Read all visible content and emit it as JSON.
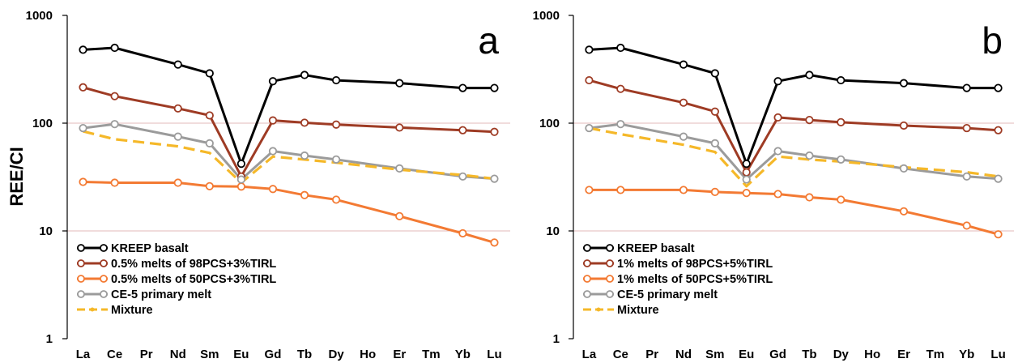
{
  "chart_data": [
    {
      "type": "line",
      "panel_label": "a",
      "ylabel": "REE/CI",
      "yscale": "log",
      "ylim": [
        1,
        1000
      ],
      "yticks": [
        "1",
        "10",
        "100",
        "1000"
      ],
      "grid": "horizontal gridlines at 10 and 100",
      "legend_position": "bottom-left",
      "categories": [
        "La",
        "Ce",
        "Pr",
        "Nd",
        "Sm",
        "Eu",
        "Gd",
        "Tb",
        "Dy",
        "Ho",
        "Er",
        "Tm",
        "Yb",
        "Lu"
      ],
      "series": [
        {
          "name": "KREEP basalt",
          "color": "#000000",
          "style": "solid",
          "markers": true,
          "values": [
            480,
            500,
            null,
            350,
            290,
            42,
            245,
            280,
            250,
            null,
            235,
            null,
            212,
            212
          ]
        },
        {
          "name": "0.5% melts of 98PCS+3%TIRL",
          "color": "#9e3b24",
          "style": "solid",
          "markers": true,
          "values": [
            215,
            178,
            null,
            137,
            118,
            32,
            106,
            101,
            97,
            null,
            91,
            null,
            86,
            83
          ]
        },
        {
          "name": "0.5% melts of 50PCS+3%TIRL",
          "color": "#f37a33",
          "style": "solid",
          "markers": true,
          "values": [
            28.5,
            28,
            null,
            28,
            26,
            25.8,
            24.5,
            21.5,
            19.5,
            null,
            13.7,
            null,
            9.5,
            7.8
          ]
        },
        {
          "name": "CE-5 primary melt",
          "color": "#9b9b9b",
          "style": "solid",
          "markers": true,
          "values": [
            90,
            98,
            null,
            75,
            65,
            30,
            55,
            50,
            46,
            null,
            38,
            null,
            32,
            30.5
          ]
        },
        {
          "name": "Mixture",
          "color": "#f5b829",
          "style": "dashed",
          "markers": false,
          "values": [
            84,
            71,
            null,
            61,
            53,
            28,
            49,
            46,
            43,
            null,
            37,
            null,
            33,
            30.5
          ]
        }
      ]
    },
    {
      "type": "line",
      "panel_label": "b",
      "ylabel": "",
      "yscale": "log",
      "ylim": [
        1,
        1000
      ],
      "yticks": [
        "1",
        "10",
        "100",
        "1000"
      ],
      "grid": "horizontal gridlines at 10 and 100",
      "legend_position": "bottom-left",
      "categories": [
        "La",
        "Ce",
        "Pr",
        "Nd",
        "Sm",
        "Eu",
        "Gd",
        "Tb",
        "Dy",
        "Ho",
        "Er",
        "Tm",
        "Yb",
        "Lu"
      ],
      "series": [
        {
          "name": "KREEP basalt",
          "color": "#000000",
          "style": "solid",
          "markers": true,
          "values": [
            480,
            500,
            null,
            350,
            290,
            42,
            245,
            280,
            250,
            null,
            235,
            null,
            212,
            212
          ]
        },
        {
          "name": "1% melts of 98PCS+5%TIRL",
          "color": "#9e3b24",
          "style": "solid",
          "markers": true,
          "values": [
            250,
            208,
            null,
            155,
            128,
            35,
            113,
            107,
            102,
            null,
            95,
            null,
            90,
            86
          ]
        },
        {
          "name": "1% melts of 50PCS+5%TIRL",
          "color": "#f37a33",
          "style": "solid",
          "markers": true,
          "values": [
            24,
            24,
            null,
            24,
            23,
            22.5,
            22,
            20.5,
            19.5,
            null,
            15.2,
            null,
            11.2,
            9.3
          ]
        },
        {
          "name": "CE-5 primary melt",
          "color": "#9b9b9b",
          "style": "solid",
          "markers": true,
          "values": [
            90,
            98,
            null,
            75,
            65,
            30,
            55,
            50,
            46,
            null,
            38,
            null,
            32,
            30.5
          ]
        },
        {
          "name": "Mixture",
          "color": "#f5b829",
          "style": "dashed",
          "markers": false,
          "values": [
            90,
            79,
            null,
            63,
            54,
            26,
            49,
            46,
            44,
            null,
            39,
            null,
            35,
            32
          ]
        }
      ]
    }
  ]
}
